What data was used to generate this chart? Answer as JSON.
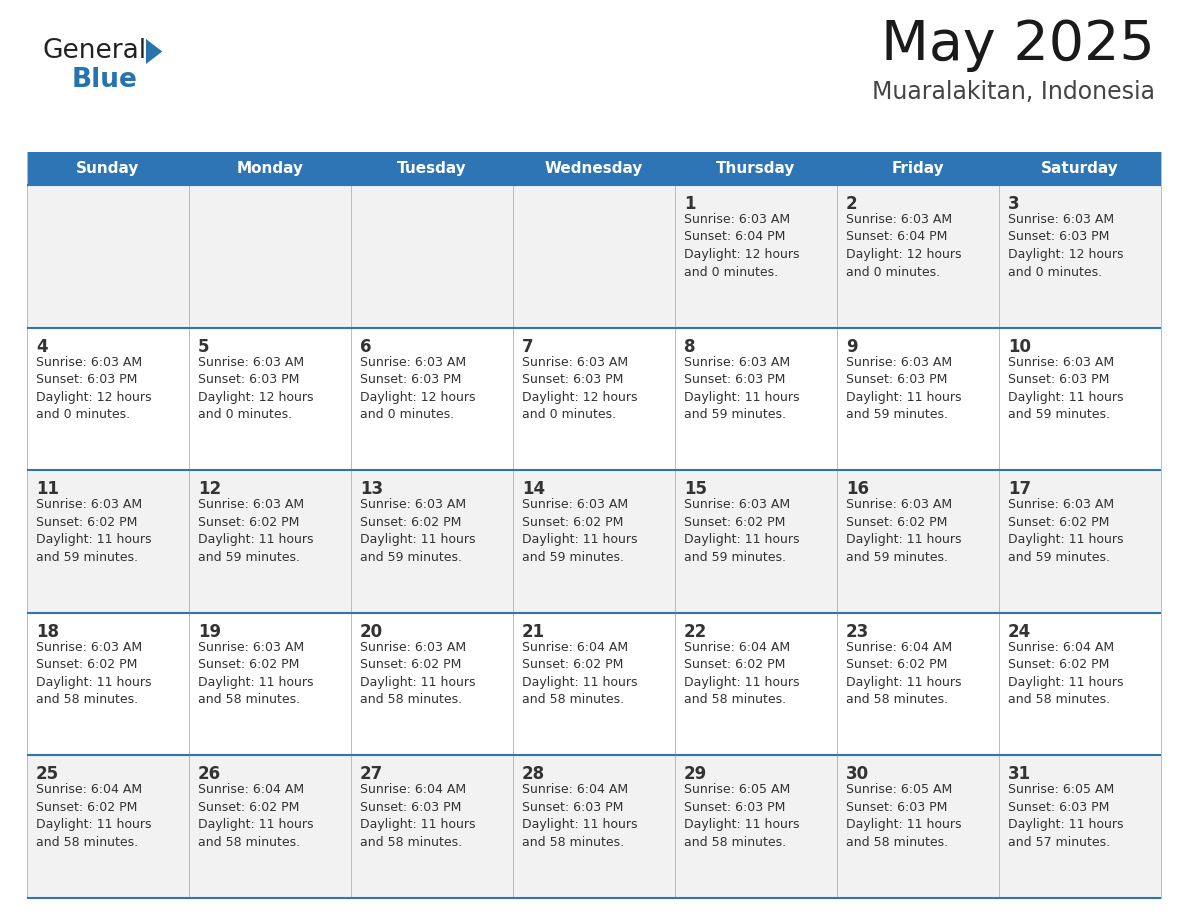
{
  "title": "May 2025",
  "subtitle": "Muaralakitan, Indonesia",
  "header_bg_color": "#2E75B6",
  "header_text_color": "#FFFFFF",
  "cell_bg_even": "#F2F2F2",
  "cell_bg_white": "#FFFFFF",
  "border_color": "#2E75B6",
  "days_of_week": [
    "Sunday",
    "Monday",
    "Tuesday",
    "Wednesday",
    "Thursday",
    "Friday",
    "Saturday"
  ],
  "title_color": "#1a1a1a",
  "subtitle_color": "#444444",
  "day_num_color": "#333333",
  "info_color": "#333333",
  "calendar": [
    [
      {
        "day": "",
        "sunrise": "",
        "sunset": "",
        "daylight_h": "",
        "daylight_m": ""
      },
      {
        "day": "",
        "sunrise": "",
        "sunset": "",
        "daylight_h": "",
        "daylight_m": ""
      },
      {
        "day": "",
        "sunrise": "",
        "sunset": "",
        "daylight_h": "",
        "daylight_m": ""
      },
      {
        "day": "",
        "sunrise": "",
        "sunset": "",
        "daylight_h": "",
        "daylight_m": ""
      },
      {
        "day": "1",
        "sunrise": "6:03 AM",
        "sunset": "6:04 PM",
        "daylight_h": "12",
        "daylight_m": "0"
      },
      {
        "day": "2",
        "sunrise": "6:03 AM",
        "sunset": "6:04 PM",
        "daylight_h": "12",
        "daylight_m": "0"
      },
      {
        "day": "3",
        "sunrise": "6:03 AM",
        "sunset": "6:03 PM",
        "daylight_h": "12",
        "daylight_m": "0"
      }
    ],
    [
      {
        "day": "4",
        "sunrise": "6:03 AM",
        "sunset": "6:03 PM",
        "daylight_h": "12",
        "daylight_m": "0"
      },
      {
        "day": "5",
        "sunrise": "6:03 AM",
        "sunset": "6:03 PM",
        "daylight_h": "12",
        "daylight_m": "0"
      },
      {
        "day": "6",
        "sunrise": "6:03 AM",
        "sunset": "6:03 PM",
        "daylight_h": "12",
        "daylight_m": "0"
      },
      {
        "day": "7",
        "sunrise": "6:03 AM",
        "sunset": "6:03 PM",
        "daylight_h": "12",
        "daylight_m": "0"
      },
      {
        "day": "8",
        "sunrise": "6:03 AM",
        "sunset": "6:03 PM",
        "daylight_h": "11",
        "daylight_m": "59"
      },
      {
        "day": "9",
        "sunrise": "6:03 AM",
        "sunset": "6:03 PM",
        "daylight_h": "11",
        "daylight_m": "59"
      },
      {
        "day": "10",
        "sunrise": "6:03 AM",
        "sunset": "6:03 PM",
        "daylight_h": "11",
        "daylight_m": "59"
      }
    ],
    [
      {
        "day": "11",
        "sunrise": "6:03 AM",
        "sunset": "6:02 PM",
        "daylight_h": "11",
        "daylight_m": "59"
      },
      {
        "day": "12",
        "sunrise": "6:03 AM",
        "sunset": "6:02 PM",
        "daylight_h": "11",
        "daylight_m": "59"
      },
      {
        "day": "13",
        "sunrise": "6:03 AM",
        "sunset": "6:02 PM",
        "daylight_h": "11",
        "daylight_m": "59"
      },
      {
        "day": "14",
        "sunrise": "6:03 AM",
        "sunset": "6:02 PM",
        "daylight_h": "11",
        "daylight_m": "59"
      },
      {
        "day": "15",
        "sunrise": "6:03 AM",
        "sunset": "6:02 PM",
        "daylight_h": "11",
        "daylight_m": "59"
      },
      {
        "day": "16",
        "sunrise": "6:03 AM",
        "sunset": "6:02 PM",
        "daylight_h": "11",
        "daylight_m": "59"
      },
      {
        "day": "17",
        "sunrise": "6:03 AM",
        "sunset": "6:02 PM",
        "daylight_h": "11",
        "daylight_m": "59"
      }
    ],
    [
      {
        "day": "18",
        "sunrise": "6:03 AM",
        "sunset": "6:02 PM",
        "daylight_h": "11",
        "daylight_m": "58"
      },
      {
        "day": "19",
        "sunrise": "6:03 AM",
        "sunset": "6:02 PM",
        "daylight_h": "11",
        "daylight_m": "58"
      },
      {
        "day": "20",
        "sunrise": "6:03 AM",
        "sunset": "6:02 PM",
        "daylight_h": "11",
        "daylight_m": "58"
      },
      {
        "day": "21",
        "sunrise": "6:04 AM",
        "sunset": "6:02 PM",
        "daylight_h": "11",
        "daylight_m": "58"
      },
      {
        "day": "22",
        "sunrise": "6:04 AM",
        "sunset": "6:02 PM",
        "daylight_h": "11",
        "daylight_m": "58"
      },
      {
        "day": "23",
        "sunrise": "6:04 AM",
        "sunset": "6:02 PM",
        "daylight_h": "11",
        "daylight_m": "58"
      },
      {
        "day": "24",
        "sunrise": "6:04 AM",
        "sunset": "6:02 PM",
        "daylight_h": "11",
        "daylight_m": "58"
      }
    ],
    [
      {
        "day": "25",
        "sunrise": "6:04 AM",
        "sunset": "6:02 PM",
        "daylight_h": "11",
        "daylight_m": "58"
      },
      {
        "day": "26",
        "sunrise": "6:04 AM",
        "sunset": "6:02 PM",
        "daylight_h": "11",
        "daylight_m": "58"
      },
      {
        "day": "27",
        "sunrise": "6:04 AM",
        "sunset": "6:03 PM",
        "daylight_h": "11",
        "daylight_m": "58"
      },
      {
        "day": "28",
        "sunrise": "6:04 AM",
        "sunset": "6:03 PM",
        "daylight_h": "11",
        "daylight_m": "58"
      },
      {
        "day": "29",
        "sunrise": "6:05 AM",
        "sunset": "6:03 PM",
        "daylight_h": "11",
        "daylight_m": "58"
      },
      {
        "day": "30",
        "sunrise": "6:05 AM",
        "sunset": "6:03 PM",
        "daylight_h": "11",
        "daylight_m": "58"
      },
      {
        "day": "31",
        "sunrise": "6:05 AM",
        "sunset": "6:03 PM",
        "daylight_h": "11",
        "daylight_m": "57"
      }
    ]
  ],
  "logo_general_color": "#1a1a1a",
  "logo_blue_color": "#2773AE"
}
